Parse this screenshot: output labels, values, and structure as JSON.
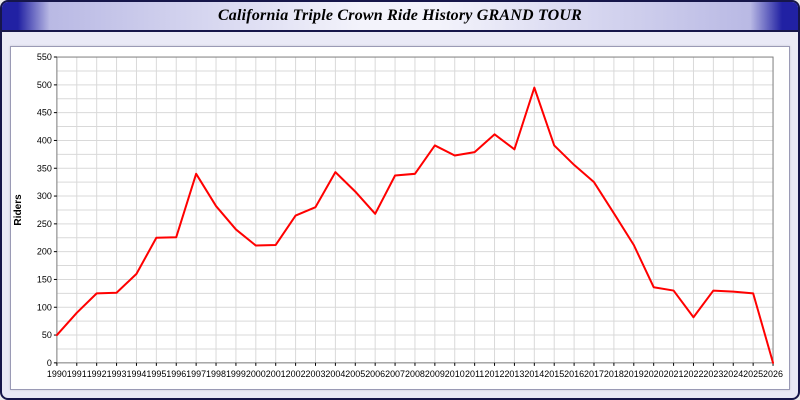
{
  "window": {
    "title": "California Triple Crown Ride History GRAND TOUR"
  },
  "chart_data": {
    "type": "line",
    "title": "California Triple Crown Ride History GRAND TOUR",
    "xlabel": "",
    "ylabel": "Riders",
    "ylim": [
      0,
      550
    ],
    "y_tick_step": 50,
    "y_minor_step": 25,
    "grid": true,
    "legend": "none",
    "categories": [
      "1990",
      "1991",
      "1992",
      "1993",
      "1994",
      "1995",
      "1996",
      "1997",
      "1998",
      "1999",
      "2000",
      "2001",
      "2002",
      "2003",
      "2004",
      "2005",
      "2006",
      "2007",
      "2008",
      "2009",
      "2010",
      "2011",
      "2012",
      "2013",
      "2014",
      "2015",
      "2016",
      "2017",
      "2018",
      "2019",
      "2020",
      "2021",
      "2022",
      "2023",
      "2024",
      "2025",
      "2026"
    ],
    "series": [
      {
        "name": "Riders",
        "color": "#ff0000",
        "values": [
          50,
          90,
          125,
          126,
          160,
          225,
          226,
          340,
          282,
          240,
          211,
          212,
          265,
          280,
          343,
          308,
          268,
          337,
          340,
          391,
          373,
          379,
          411,
          384,
          495,
          391,
          356,
          325,
          269,
          212,
          136,
          130,
          82,
          130,
          128,
          125,
          0
        ]
      }
    ],
    "colors": {
      "line": "#ff0000",
      "grid": "#d9d9d9",
      "plot_border": "#808080",
      "axis": "#000000",
      "panel_bg": "#ffffff",
      "page_bg": "#e9e9f6",
      "titlebar_accent": "#2121a3"
    }
  }
}
